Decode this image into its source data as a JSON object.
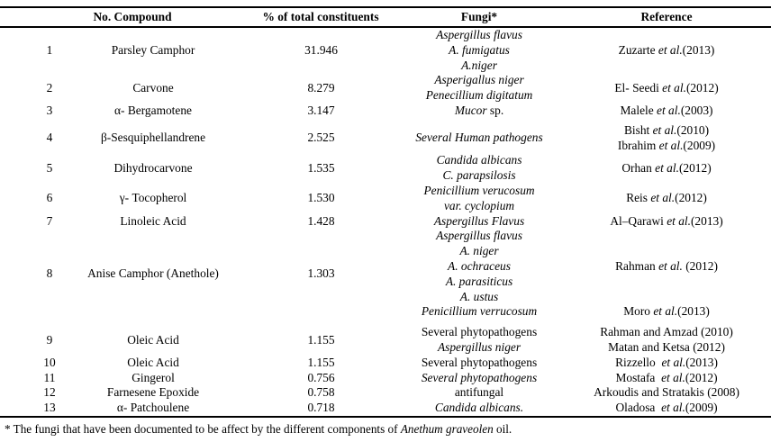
{
  "table": {
    "header": {
      "no_compound": "No. Compound",
      "pct": "% of total constituents",
      "fungi": "Fungi*",
      "reference": "Reference"
    },
    "rows": [
      {
        "no": "1",
        "compound": "Parsley Camphor",
        "pct": "31.946",
        "fungi": [
          [
            {
              "t": "Aspergillus flavus",
              "i": true
            }
          ],
          [
            {
              "t": "A. fumigatus",
              "i": true
            }
          ],
          [
            {
              "t": "A.niger",
              "i": true
            }
          ]
        ],
        "refs": [
          [
            {
              "t": "Zuzarte ",
              "i": false
            },
            {
              "t": "et al.",
              "i": true
            },
            {
              "t": "(2013)",
              "i": false
            }
          ]
        ]
      },
      {
        "no": "2",
        "compound": "Carvone",
        "pct": "8.279",
        "fungi": [
          [
            {
              "t": "Asperigallus niger",
              "i": true
            }
          ],
          [
            {
              "t": "Penecillium digitatum",
              "i": true
            }
          ]
        ],
        "refs": [
          [
            {
              "t": "El- Seedi ",
              "i": false
            },
            {
              "t": "et al.",
              "i": true
            },
            {
              "t": "(2012)",
              "i": false
            }
          ]
        ]
      },
      {
        "no": "3",
        "compound": "α- Bergamotene",
        "pct": "3.147",
        "fungi": [
          [
            {
              "t": "Mucor",
              "i": true
            },
            {
              "t": " sp.",
              "i": false
            }
          ]
        ],
        "refs": [
          [
            {
              "t": "Malele ",
              "i": false
            },
            {
              "t": "et al.",
              "i": true
            },
            {
              "t": "(2003)",
              "i": false
            }
          ]
        ]
      },
      {
        "no": "4",
        "compound": "β-Sesquiphellandrene",
        "pct": "2.525",
        "fungi": [
          [
            {
              "t": "Several Human pathogens",
              "i": true
            }
          ]
        ],
        "refs": [
          [
            {
              "t": "Bisht ",
              "i": false
            },
            {
              "t": "et al.",
              "i": true
            },
            {
              "t": "(2010)",
              "i": false
            }
          ],
          [
            {
              "t": "Ibrahim ",
              "i": false
            },
            {
              "t": "et al.",
              "i": true
            },
            {
              "t": "(2009)",
              "i": false
            }
          ]
        ]
      },
      {
        "no": "5",
        "compound": "Dihydrocarvone",
        "pct": "1.535",
        "fungi": [
          [
            {
              "t": "Candida albicans",
              "i": true
            }
          ],
          [
            {
              "t": "C. parapsilosis",
              "i": true
            }
          ]
        ],
        "refs": [
          [
            {
              "t": "Orhan ",
              "i": false
            },
            {
              "t": "et al.",
              "i": true
            },
            {
              "t": "(2012)",
              "i": false
            }
          ]
        ]
      },
      {
        "no": "6",
        "compound": "γ- Tocopherol",
        "pct": "1.530",
        "fungi": [
          [
            {
              "t": "Penicillium verucosum",
              "i": true
            }
          ],
          [
            {
              "t": "var. cyclopium",
              "i": true
            }
          ]
        ],
        "refs": [
          [
            {
              "t": "Reis ",
              "i": false
            },
            {
              "t": "et al.",
              "i": true
            },
            {
              "t": "(2012)",
              "i": false
            }
          ]
        ]
      },
      {
        "no": "7",
        "compound": "Linoleic Acid",
        "pct": "1.428",
        "fungi": [
          [
            {
              "t": "Aspergillus Flavus",
              "i": true
            }
          ]
        ],
        "refs": [
          [
            {
              "t": "Al–Qarawi ",
              "i": false
            },
            {
              "t": "et al.",
              "i": true
            },
            {
              "t": "(2013)",
              "i": false
            }
          ]
        ]
      },
      {
        "no": "8",
        "compound": "Anise Camphor (Anethole)",
        "pct": "1.303",
        "fungi": [
          [
            {
              "t": "Aspergillus flavus",
              "i": true
            }
          ],
          [
            {
              "t": "A. niger",
              "i": true
            }
          ],
          [
            {
              "t": "A. ochraceus",
              "i": true
            }
          ],
          [
            {
              "t": "A. parasiticus",
              "i": true
            }
          ],
          [
            {
              "t": "A. ustus",
              "i": true
            }
          ],
          [
            {
              "t": "Penicillium verrucosum",
              "i": true
            }
          ]
        ],
        "refs": [
          [],
          [],
          [
            {
              "t": "Rahman ",
              "i": false
            },
            {
              "t": "et al.",
              "i": true
            },
            {
              "t": " (2012)",
              "i": false
            }
          ],
          [],
          [],
          [
            {
              "t": "Moro ",
              "i": false
            },
            {
              "t": "et al.",
              "i": true
            },
            {
              "t": "(2013)",
              "i": false
            }
          ]
        ]
      },
      {
        "no": "9",
        "compound": "Oleic Acid",
        "pct": "1.155",
        "fungi": [
          [
            {
              "t": "Several phytopathogens",
              "i": false
            }
          ],
          [
            {
              "t": "Aspergillus niger",
              "i": true
            }
          ]
        ],
        "refs": [
          [
            {
              "t": "Rahman and Amzad (2010)",
              "i": false
            }
          ],
          [
            {
              "t": "Matan and Ketsa (2012)",
              "i": false
            }
          ]
        ]
      },
      {
        "no": "10",
        "compound": "Oleic Acid",
        "pct": "1.155",
        "fungi": [
          [
            {
              "t": "Several phytopathogens",
              "i": false
            }
          ]
        ],
        "refs": [
          [
            {
              "t": "Rizzello  ",
              "i": false
            },
            {
              "t": "et al.",
              "i": true
            },
            {
              "t": "(2013)",
              "i": false
            }
          ]
        ]
      },
      {
        "no": "11",
        "compound": "Gingerol",
        "pct": "0.756",
        "fungi": [
          [
            {
              "t": "Several phytopathogens",
              "i": true
            }
          ]
        ],
        "refs": [
          [
            {
              "t": "Mostafa  ",
              "i": false
            },
            {
              "t": "et al.",
              "i": true
            },
            {
              "t": "(2012)",
              "i": false
            }
          ]
        ]
      },
      {
        "no": "12",
        "compound": "Farnesene Epoxide",
        "pct": "0.758",
        "fungi": [
          [
            {
              "t": "antifungal",
              "i": false
            }
          ]
        ],
        "refs": [
          [
            {
              "t": "Arkoudis and Stratakis (2008)",
              "i": false
            }
          ]
        ]
      },
      {
        "no": "13",
        "compound": "α- Patchoulene",
        "pct": "0.718",
        "fungi": [
          [
            {
              "t": "Candida albicans.",
              "i": true
            }
          ]
        ],
        "refs": [
          [
            {
              "t": "Oladosa  ",
              "i": false
            },
            {
              "t": "et al.",
              "i": true
            },
            {
              "t": "(2009)",
              "i": false
            }
          ]
        ]
      }
    ],
    "footnote": [
      {
        "t": "* The fungi that have been documented to be affect by the different components of ",
        "i": false
      },
      {
        "t": "Anethum graveolen",
        "i": true
      },
      {
        "t": " oil.",
        "i": false
      }
    ]
  }
}
